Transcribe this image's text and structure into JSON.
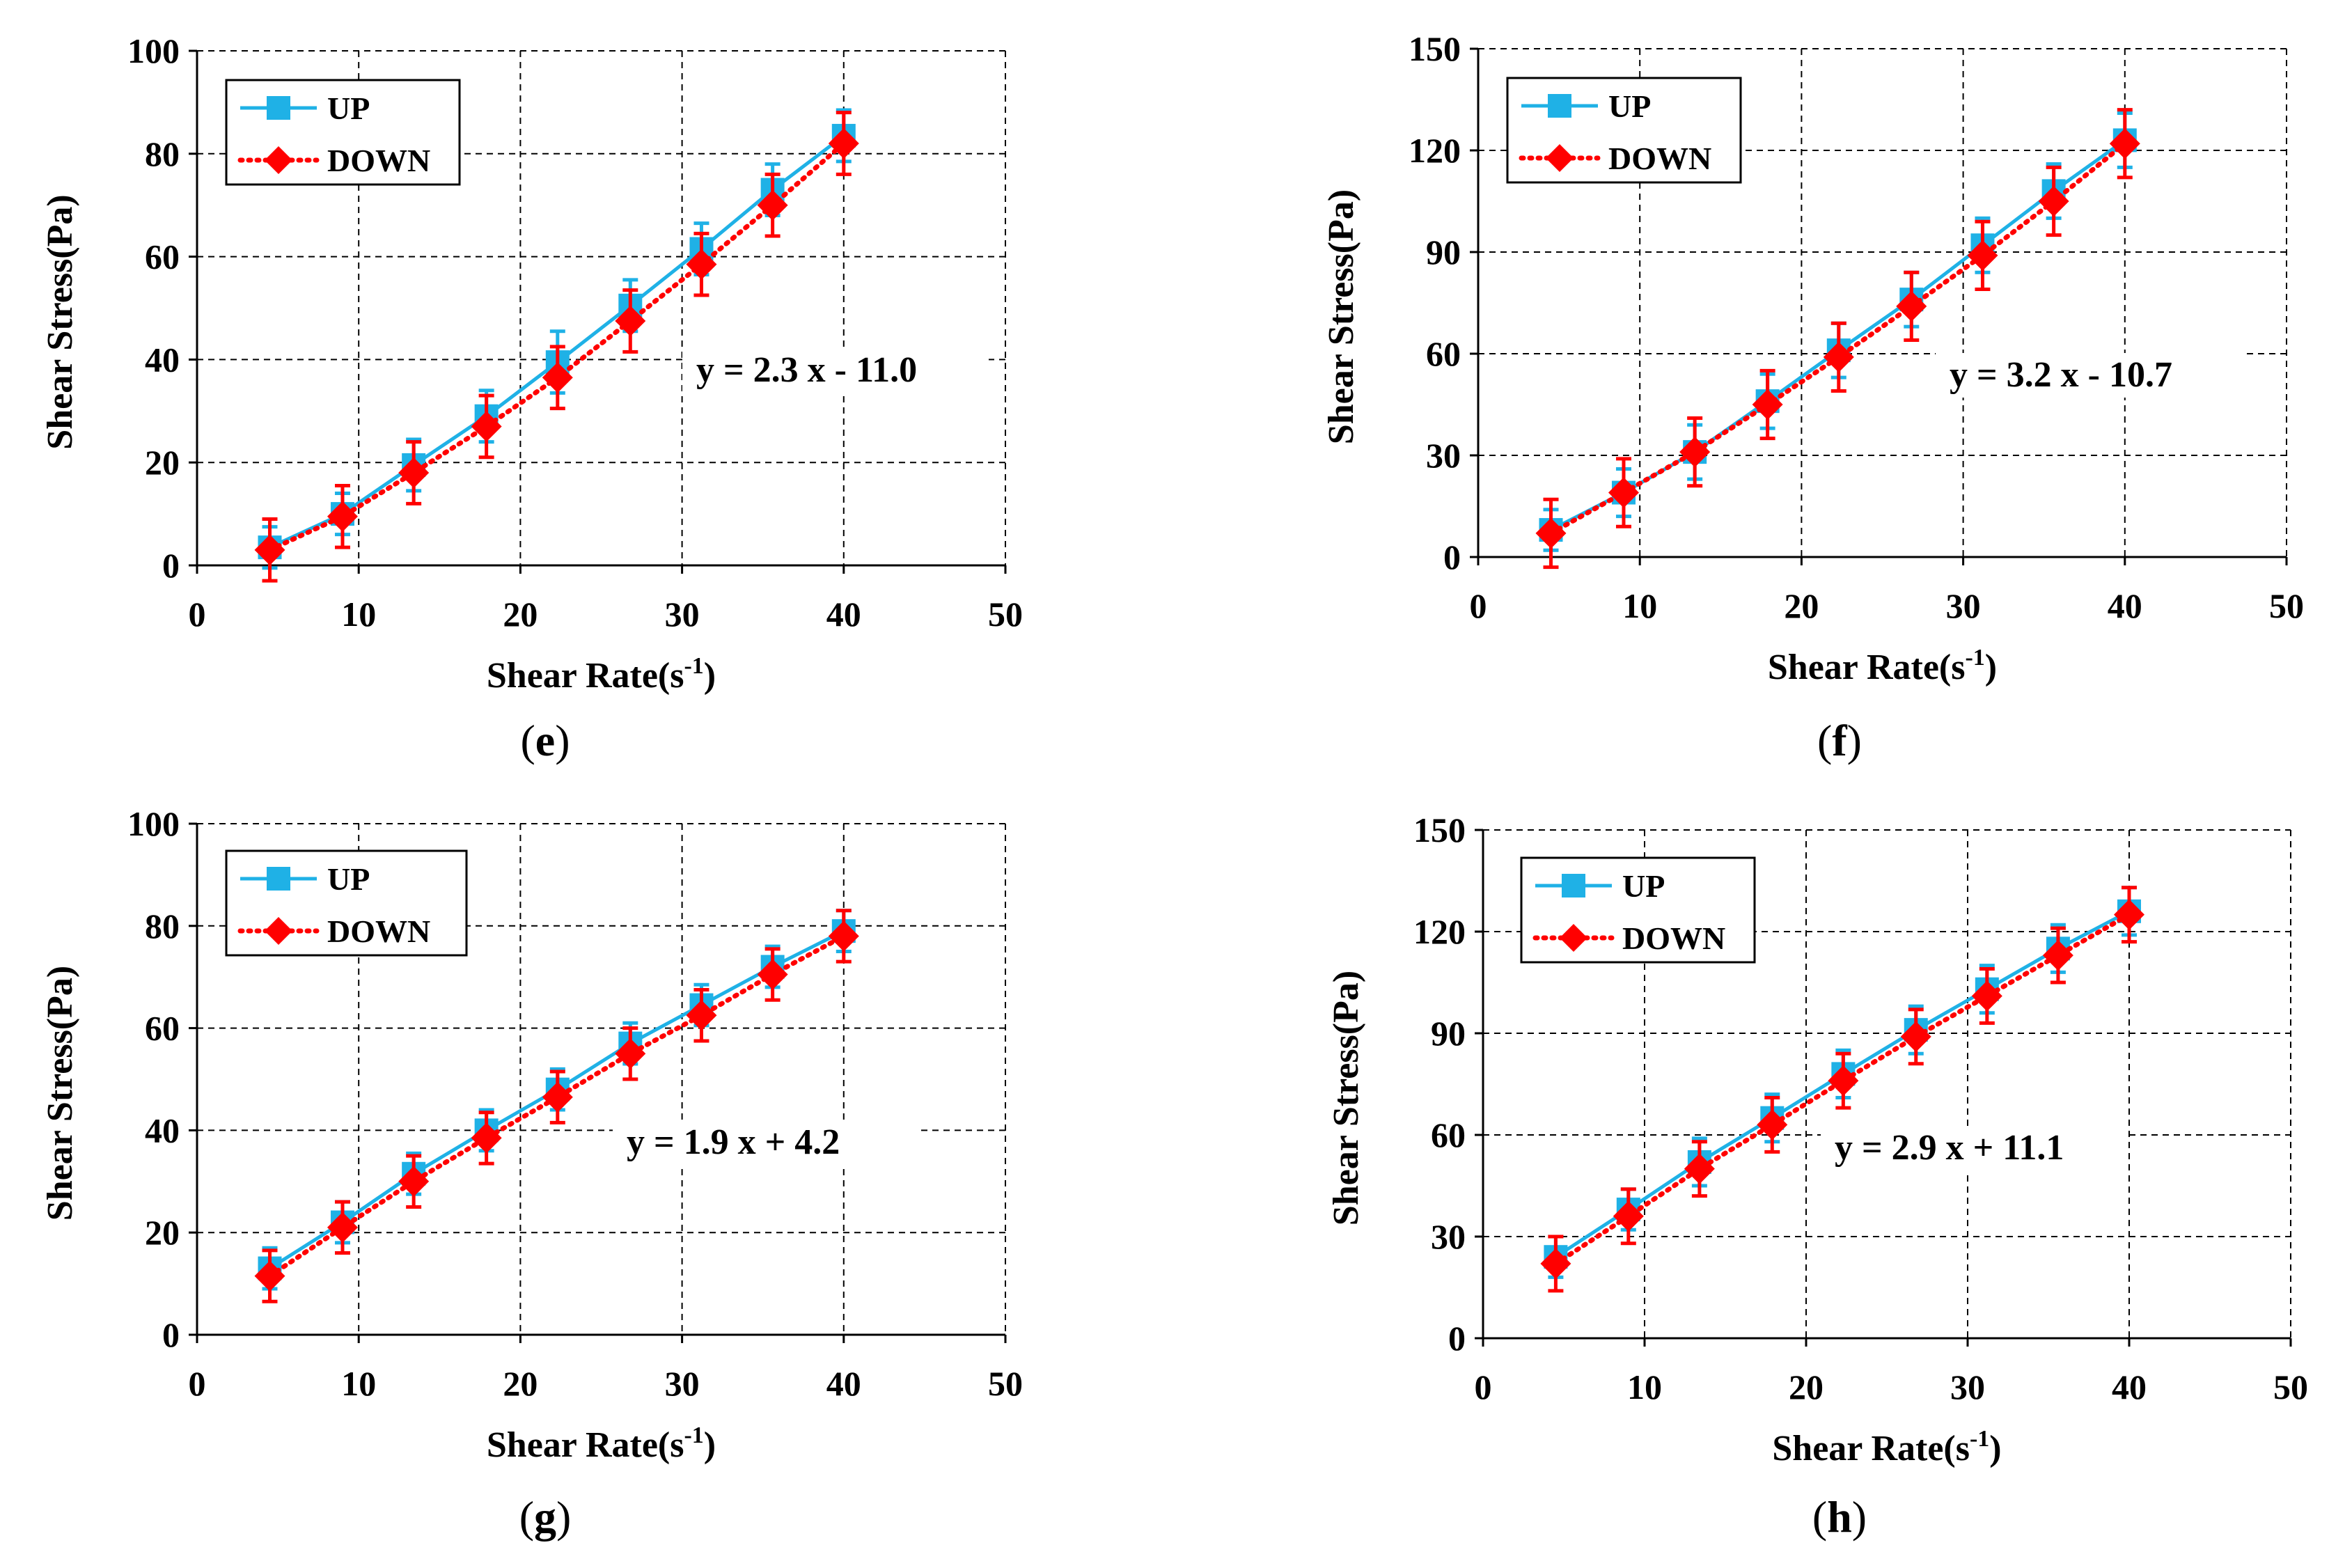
{
  "chart_data": [
    {
      "id": "e",
      "type": "line",
      "panel_label": "e",
      "xlabel": "Shear Rate(s",
      "xlabel_sup": "-1",
      "xlabel_end": ")",
      "ylabel": "Shear Stress(Pa)",
      "xlim": [
        0,
        50
      ],
      "ylim": [
        0,
        100
      ],
      "xticks": [
        0,
        10,
        20,
        30,
        40,
        50
      ],
      "yticks": [
        0,
        20,
        40,
        60,
        80,
        100
      ],
      "grid": true,
      "legend_position": "top-left",
      "annotation": "y = 2.3 x - 11.0",
      "x": [
        4.5,
        9,
        13.4,
        17.9,
        22.3,
        26.8,
        31.2,
        35.6,
        40
      ],
      "series": [
        {
          "name": "UP",
          "color": "#1fb1e6",
          "marker": "square",
          "line": "solid",
          "values": [
            3.5,
            10,
            19.5,
            29,
            39.5,
            50.5,
            61.5,
            73,
            83.5
          ],
          "errors": [
            4,
            4,
            5,
            5,
            6,
            5,
            5,
            5,
            5
          ]
        },
        {
          "name": "DOWN",
          "color": "#ff0000",
          "marker": "diamond",
          "line": "dotted",
          "values": [
            3,
            9.5,
            18,
            27,
            36.5,
            47.5,
            58.5,
            70,
            82
          ],
          "errors": [
            6,
            6,
            6,
            6,
            6,
            6,
            6,
            6,
            6
          ]
        }
      ]
    },
    {
      "id": "f",
      "type": "line",
      "panel_label": "f",
      "xlabel": "Shear Rate(s",
      "xlabel_sup": "-1",
      "xlabel_end": ")",
      "ylabel": "Shear Stress(Pa)",
      "xlim": [
        0,
        50
      ],
      "ylim": [
        0,
        150
      ],
      "xticks": [
        0,
        10,
        20,
        30,
        40,
        50
      ],
      "yticks": [
        0,
        30,
        60,
        90,
        120,
        150
      ],
      "grid": true,
      "legend_position": "top-left",
      "annotation": "y = 3.2 x - 10.7",
      "x": [
        4.5,
        9,
        13.4,
        17.9,
        22.3,
        26.8,
        31.2,
        35.6,
        40
      ],
      "series": [
        {
          "name": "UP",
          "color": "#1fb1e6",
          "marker": "square",
          "line": "solid",
          "values": [
            8,
            19,
            31,
            46,
            61,
            76,
            92,
            108,
            123
          ],
          "errors": [
            6,
            7,
            8,
            8,
            8,
            8,
            8,
            8,
            8
          ]
        },
        {
          "name": "DOWN",
          "color": "#ff0000",
          "marker": "diamond",
          "line": "dotted",
          "values": [
            7,
            19,
            31,
            45,
            59,
            74,
            89,
            105,
            122
          ],
          "errors": [
            10,
            10,
            10,
            10,
            10,
            10,
            10,
            10,
            10
          ]
        }
      ]
    },
    {
      "id": "g",
      "type": "line",
      "panel_label": "g",
      "xlabel": "Shear Rate(s",
      "xlabel_sup": "-1",
      "xlabel_end": ")",
      "ylabel": "Shear Stress(Pa)",
      "xlim": [
        0,
        50
      ],
      "ylim": [
        0,
        100
      ],
      "xticks": [
        0,
        10,
        20,
        30,
        40,
        50
      ],
      "yticks": [
        0,
        20,
        40,
        60,
        80,
        100
      ],
      "grid": true,
      "legend_position": "top-left",
      "annotation": "y = 1.9 x + 4.2",
      "x": [
        4.5,
        9,
        13.4,
        17.9,
        22.3,
        26.8,
        31.2,
        35.6,
        40
      ],
      "series": [
        {
          "name": "UP",
          "color": "#1fb1e6",
          "marker": "square",
          "line": "solid",
          "values": [
            13,
            22,
            31.5,
            40,
            48,
            57,
            64.5,
            72,
            79
          ],
          "errors": [
            4,
            4,
            4,
            4,
            4,
            4,
            4,
            4,
            4
          ]
        },
        {
          "name": "DOWN",
          "color": "#ff0000",
          "marker": "diamond",
          "line": "dotted",
          "values": [
            11.5,
            21,
            30,
            38.5,
            46.5,
            55,
            62.5,
            70.5,
            78
          ],
          "errors": [
            5,
            5,
            5,
            5,
            5,
            5,
            5,
            5,
            5
          ]
        }
      ]
    },
    {
      "id": "h",
      "type": "line",
      "panel_label": "h",
      "xlabel": "Shear Rate(s",
      "xlabel_sup": "-1",
      "xlabel_end": ")",
      "ylabel": "Shear Stress(Pa)",
      "xlim": [
        0,
        50
      ],
      "ylim": [
        0,
        150
      ],
      "xticks": [
        0,
        10,
        20,
        30,
        40,
        50
      ],
      "yticks": [
        0,
        30,
        60,
        90,
        120,
        150
      ],
      "grid": true,
      "legend_position": "top-left",
      "annotation": "y = 2.9 x + 11.1",
      "x": [
        4.5,
        9,
        13.4,
        17.9,
        22.3,
        26.8,
        31.2,
        35.6,
        40
      ],
      "series": [
        {
          "name": "UP",
          "color": "#1fb1e6",
          "marker": "square",
          "line": "solid",
          "values": [
            24,
            38,
            52,
            65,
            78,
            91,
            103,
            115,
            126
          ],
          "errors": [
            6,
            6,
            7,
            7,
            7,
            7,
            7,
            7,
            7
          ]
        },
        {
          "name": "DOWN",
          "color": "#ff0000",
          "marker": "diamond",
          "line": "dotted",
          "values": [
            22,
            36,
            50,
            63,
            76,
            89,
            101,
            113,
            125
          ],
          "errors": [
            8,
            8,
            8,
            8,
            8,
            8,
            8,
            8,
            8
          ]
        }
      ]
    }
  ]
}
